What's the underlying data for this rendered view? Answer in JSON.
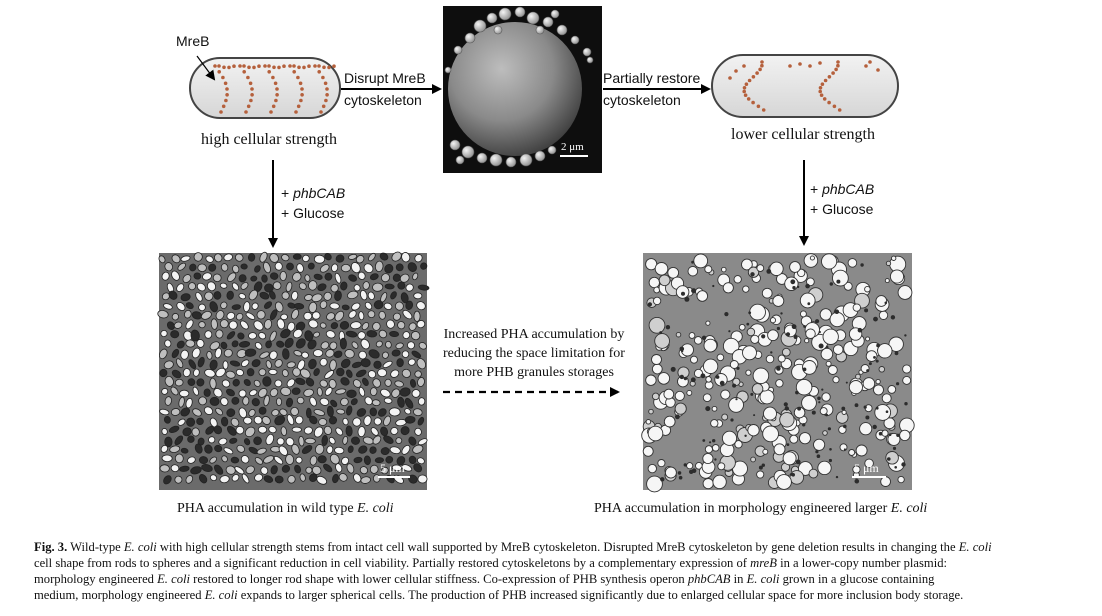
{
  "figure": {
    "mreb_label": "MreB",
    "arrow1_label": [
      "Disrupt MreB",
      "cytoskeleton"
    ],
    "arrow2_label": [
      "Partially restore",
      "cytoskeleton"
    ],
    "left_cell_caption": "high cellular strength",
    "right_cell_caption": "lower cellular strength",
    "sem_scale": "2 μm",
    "left_down_label": [
      "phbCAB",
      "Glucose"
    ],
    "right_down_label": [
      "phbCAB",
      "Glucose"
    ],
    "middle_text": [
      "Increased PHA accumulation by",
      "reducing the space limitation for",
      "more PHB granules storages"
    ],
    "tem_left_scale": "5 μm",
    "tem_right_scale": "5 μm",
    "tem_left_caption_pre": "PHA accumulation in wild type ",
    "tem_left_caption_em": "E. coli",
    "tem_right_caption_pre": "PHA accumulation in morphology engineered larger ",
    "tem_right_caption_em": "E. coli",
    "colors": {
      "dots": "#b5603c",
      "cell_fill": "#e6e6e6",
      "cell_stroke": "#444444"
    }
  },
  "caption": {
    "label": "Fig. 3.",
    "line1": {
      "a": "Wild-type ",
      "b": "E. coli",
      "c": " with high cellular strength stems from intact cell wall supported by MreB cytoskeleton. Disrupted MreB cytoskeleton by gene deletion results in changing the ",
      "d": "E. coli"
    },
    "line2": {
      "a": "cell shape from rods to spheres and a significant reduction in cell viability. Partially restored cytoskeletons by a complementary expression of ",
      "b": "mreB",
      "c": " in a lower-copy number plasmid:"
    },
    "line3": {
      "a": "morphology engineered ",
      "b": "E. coli",
      "c": " restored to longer rod shape with lower cellular stiffness. Co-expression of PHB synthesis operon ",
      "d": "phbCAB",
      "e": " in ",
      "f": "E. coli",
      "g": " grown in a glucose containing"
    },
    "line4": {
      "a": "medium, morphology engineered ",
      "b": "E. coli",
      "c": " expands to larger spherical cells. The production of PHB increased significantly due to enlarged cellular space for more inclusion body storage."
    }
  }
}
